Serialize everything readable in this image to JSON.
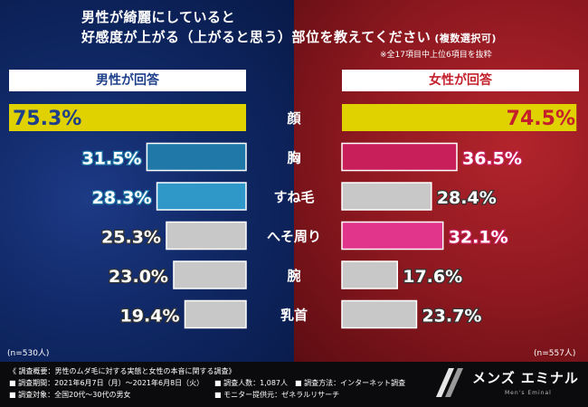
{
  "title": {
    "line1": "男性が綺麗にしていると",
    "line2": "好感度が上がる（上がると思う）部位を教えてください",
    "note": "(複数選択可)",
    "subnote": "※全17項目中上位6項目を抜粋"
  },
  "headers": {
    "left": "男性が回答",
    "right": "女性が回答"
  },
  "sample_sizes": {
    "left": "(n=530人)",
    "right": "(n=557人)"
  },
  "colors": {
    "top_bar": "#e0d200",
    "male_highlight": "#1f78a8",
    "male_highlight2": "#2f98c8",
    "female_highlight": "#c81e5a",
    "female_highlight2": "#e0358a",
    "neutral": "#c8c8c8"
  },
  "chart_data": {
    "type": "bar",
    "categories": [
      "顔",
      "胸",
      "すね毛",
      "へそ周り",
      "腕",
      "乳首"
    ],
    "series": [
      {
        "name": "男性が回答",
        "values": [
          75.3,
          31.5,
          28.3,
          25.3,
          23.0,
          19.4
        ],
        "labels": [
          "75.3%",
          "31.5%",
          "28.3%",
          "25.3%",
          "23.0%",
          "19.4%"
        ]
      },
      {
        "name": "女性が回答",
        "values": [
          74.5,
          36.5,
          28.4,
          32.1,
          17.6,
          23.7
        ],
        "labels": [
          "74.5%",
          "36.5%",
          "28.4%",
          "32.1%",
          "17.6%",
          "23.7%"
        ]
      }
    ],
    "xlim": [
      0,
      75.3
    ]
  },
  "footer": {
    "title": "《 調査概要：男性のムダ毛に対する実態と女性の本音に関する調査》",
    "line1": "■ 調査期間：2021年6月7日（月）〜2021年6月8日（火）",
    "line2": "■ 調査対象：全国20代〜30代の男女",
    "r1": "■ 調査人数：1,087人　■ 調査方法：インターネット調査",
    "r2": "■ モニター提供元：ゼネラルリサーチ",
    "logo_text": "メンズ エミナル",
    "logo_sub": "Men's Eminal"
  }
}
